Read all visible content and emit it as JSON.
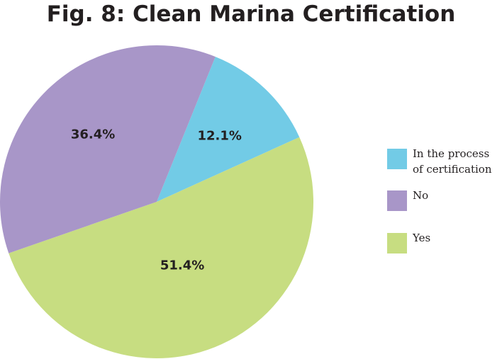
{
  "chart_data": {
    "type": "pie",
    "title": "Fig. 8: Clean Marina Certification",
    "legend_position": "right",
    "slices": [
      {
        "label": "In the process\nof certification",
        "value": 12.1,
        "display": "12.1%",
        "color": "#72cbe6"
      },
      {
        "label": "No",
        "value": 36.4,
        "display": "36.4%",
        "color": "#a896c8"
      },
      {
        "label": "Yes",
        "value": 51.4,
        "display": "51.4%",
        "color": "#c7dd81"
      }
    ]
  }
}
